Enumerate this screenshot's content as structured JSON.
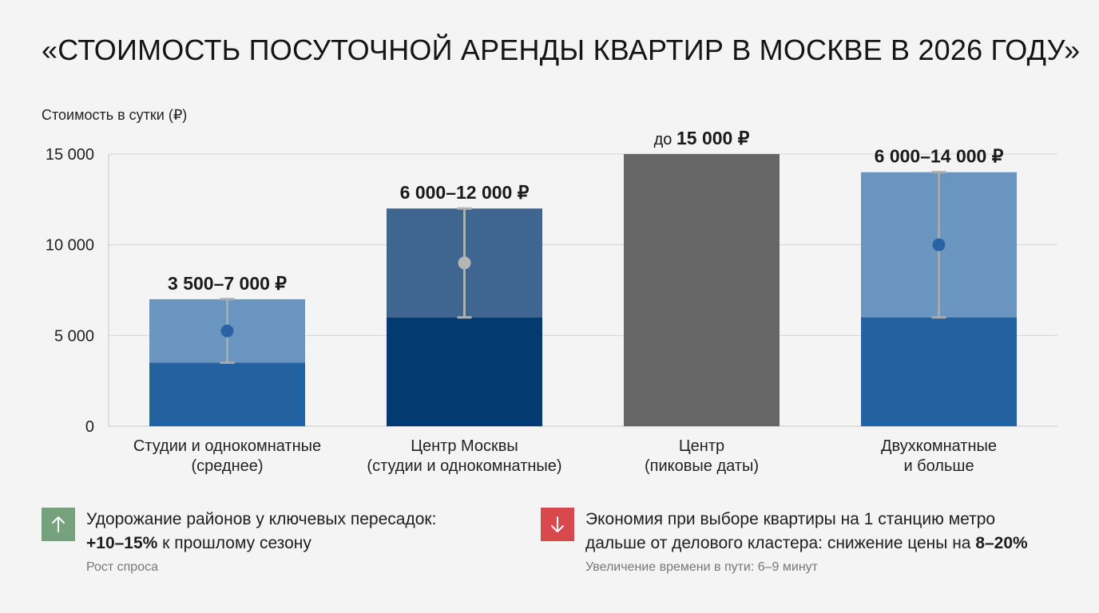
{
  "title": "«СТОИМОСТЬ ПОСУТОЧНОЙ АРЕНДЫ КВАРТИР В МОСКВЕ В 2026 ГОДУ»",
  "chart_data": {
    "type": "bar",
    "title": "«СТОИМОСТЬ ПОСУТОЧНОЙ АРЕНДЫ КВАРТИР В МОСКВЕ В 2026 ГОДУ»",
    "ylabel": "Стоимость в сутки (₽)",
    "ylim": [
      0,
      15000
    ],
    "yticks": [
      0,
      5000,
      10000,
      15000
    ],
    "ytick_labels": [
      "0",
      "5 000",
      "10 000",
      "15 000"
    ],
    "grid": true,
    "categories": [
      [
        "Студии и однокомнатные",
        "(среднее)"
      ],
      [
        "Центр Москвы",
        "(студии и однокомнатные)"
      ],
      [
        "Центр",
        "(пиковые даты)"
      ],
      [
        "Двухкомнатные",
        "и больше"
      ]
    ],
    "bars": [
      {
        "low": 3500,
        "high": 7000,
        "marker": 5250,
        "label_prefix": "",
        "label": "3 500–7 000 ₽",
        "base_color": "#2461a0",
        "range_color": "#6a95c1",
        "marker_color": "#2a63a3",
        "whisker_color": "#a9a9a9"
      },
      {
        "low": 6000,
        "high": 12000,
        "marker": 9000,
        "label_prefix": "",
        "label": "6 000–12 000 ₽",
        "base_color": "#033b70",
        "range_color": "#3f6690",
        "marker_color": "#b5b5b5",
        "whisker_color": "#b0b0b0"
      },
      {
        "low": 15000,
        "high": 15000,
        "marker": null,
        "label_prefix": "до",
        "label": "15 000 ₽",
        "base_color": "#666666",
        "range_color": "#666666",
        "marker_color": null,
        "whisker_color": null
      },
      {
        "low": 6000,
        "high": 14000,
        "marker": 10000,
        "label_prefix": "",
        "label": "6 000–14 000 ₽",
        "base_color": "#2461a0",
        "range_color": "#6a95c1",
        "marker_color": "#2a63a3",
        "whisker_color": "#a9a9a9"
      }
    ]
  },
  "notes": [
    {
      "icon": "arrow-up-icon",
      "icon_bg": "#75a27d",
      "text": "Удорожание районов у ключевых пересадок:",
      "emphasis": "+10–15%",
      "text_after": " к прошлому сезону",
      "sub": "Рост спроса"
    },
    {
      "icon": "arrow-down-icon",
      "icon_bg": "#d8484d",
      "text": "Экономия при выборе квартиры на 1 станцию метро",
      "text2": "дальше от делового кластера: снижение цены на ",
      "emphasis": "8–20%",
      "sub": "Увеличение времени в пути: 6–9 минут"
    }
  ]
}
